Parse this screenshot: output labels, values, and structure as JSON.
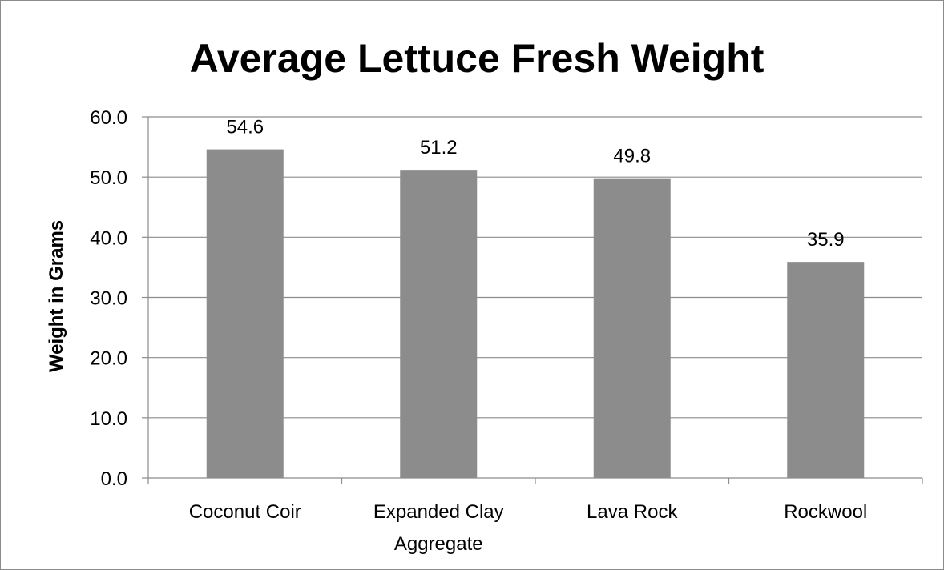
{
  "chart_data": {
    "type": "bar",
    "title": "Average Lettuce Fresh Weight",
    "xlabel": "",
    "ylabel": "Weight in Grams",
    "categories": [
      [
        "Coconut Coir"
      ],
      [
        "Expanded Clay",
        "Aggregate"
      ],
      [
        "Lava Rock"
      ],
      [
        "Rockwool"
      ]
    ],
    "values": [
      54.6,
      51.2,
      49.8,
      35.9
    ],
    "data_labels": [
      "54.6",
      "51.2",
      "49.8",
      "35.9"
    ],
    "ylim": [
      0,
      60
    ],
    "yticks": [
      0,
      10,
      20,
      30,
      40,
      50,
      60
    ],
    "ytick_labels": [
      "0.0",
      "10.0",
      "20.0",
      "30.0",
      "40.0",
      "50.0",
      "60.0"
    ],
    "grid": true,
    "legend": "none",
    "bar_color": "#8c8c8c",
    "grid_color": "#8c8c8c"
  }
}
